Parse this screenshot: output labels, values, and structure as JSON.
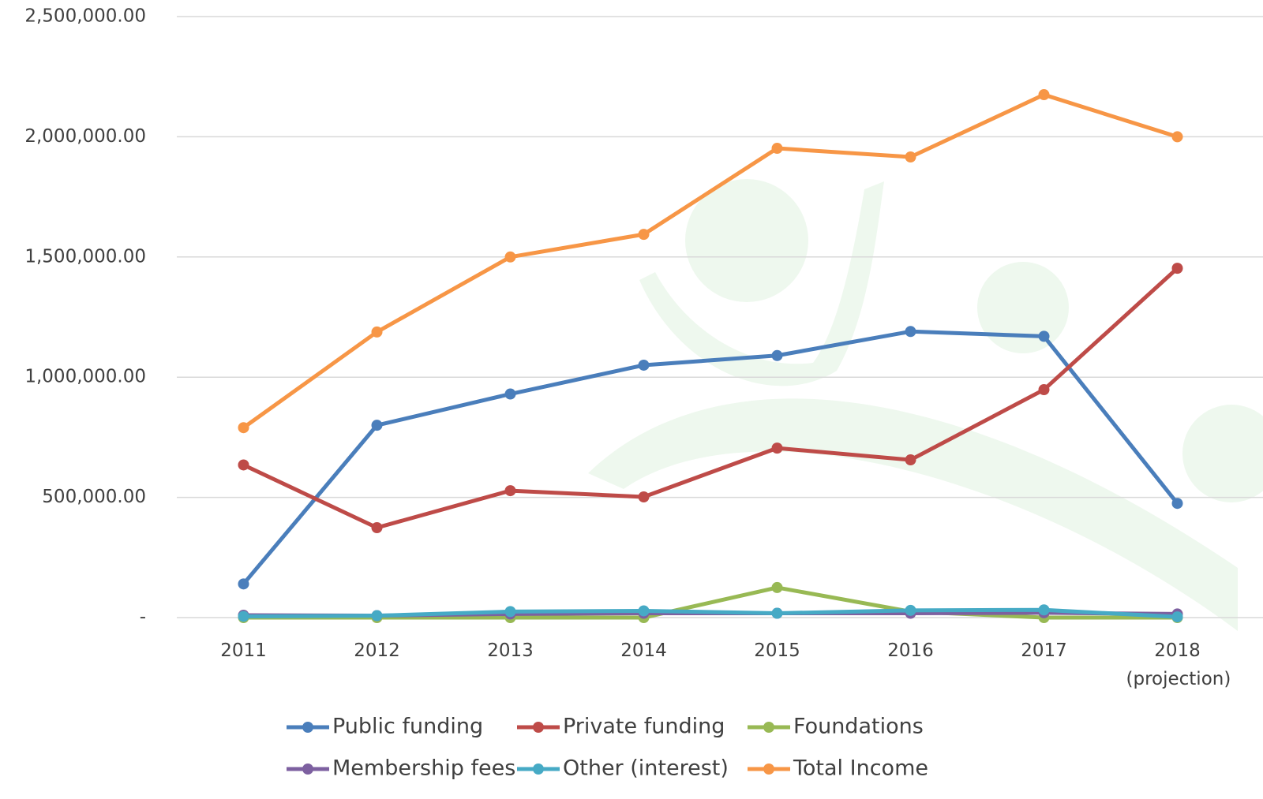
{
  "chart_data": {
    "type": "line",
    "categories": [
      "2011",
      "2012",
      "2013",
      "2014",
      "2015",
      "2016",
      "2017",
      "2018 (projection)"
    ],
    "series": [
      {
        "name": "Public funding",
        "color": "#4a7ebb",
        "values": [
          140000,
          800000,
          930000,
          1050000,
          1090000,
          1190000,
          1170000,
          475000
        ]
      },
      {
        "name": "Private funding",
        "color": "#be4b48",
        "values": [
          635000,
          374000,
          528000,
          502000,
          705000,
          656000,
          948000,
          1453000
        ]
      },
      {
        "name": "Foundations",
        "color": "#98b954",
        "values": [
          0,
          0,
          0,
          0,
          125000,
          25000,
          0,
          0
        ]
      },
      {
        "name": "Membership fees",
        "color": "#7d60a0",
        "values": [
          10000,
          8000,
          15000,
          18000,
          18000,
          18000,
          20000,
          15000
        ]
      },
      {
        "name": "Other (interest)",
        "color": "#46aac5",
        "values": [
          5000,
          8000,
          25000,
          28000,
          18000,
          30000,
          32000,
          3000
        ]
      },
      {
        "name": "Total Income",
        "color": "#f79646",
        "values": [
          790000,
          1188000,
          1500000,
          1594000,
          1952000,
          1916000,
          2175000,
          2000000
        ]
      }
    ],
    "ylim": [
      0,
      2500000
    ],
    "yticks": [
      {
        "value": 0,
        "label": "-"
      },
      {
        "value": 500000,
        "label": "500,000.00"
      },
      {
        "value": 1000000,
        "label": "1,000,000.00"
      },
      {
        "value": 1500000,
        "label": "1,500,000.00"
      },
      {
        "value": 2000000,
        "label": "2,000,000.00"
      },
      {
        "value": 2500000,
        "label": "2,500,000.00"
      }
    ],
    "grid": true
  }
}
